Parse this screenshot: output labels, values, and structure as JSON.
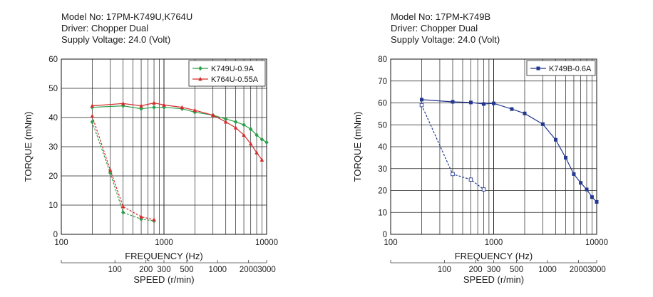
{
  "charts": [
    {
      "header": [
        "Model No: 17PM-K749U,K764U",
        "Driver: Chopper Dual",
        "Supply Voltage: 24.0 (Volt)"
      ],
      "chart_data": {
        "type": "line",
        "xscale": "log",
        "xlim": [
          100,
          10000
        ],
        "ylim": [
          0,
          60
        ],
        "xlabel": "FREQUENCY (Hz)",
        "ylabel": "TORQUE (mNm)",
        "xticks": [
          100,
          1000,
          10000
        ],
        "xtick_labels": [
          "100",
          "1000",
          "10000"
        ],
        "yticks": [
          0,
          10,
          20,
          30,
          40,
          50,
          60
        ],
        "speed_axis": {
          "label": "SPEED (r/min)",
          "ticks": [
            {
              "freq": 333,
              "label": "100"
            },
            {
              "freq": 667,
              "label": "200"
            },
            {
              "freq": 1000,
              "label": "300"
            },
            {
              "freq": 1667,
              "label": "500"
            },
            {
              "freq": 3333,
              "label": "1000"
            },
            {
              "freq": 6667,
              "label": "2000"
            },
            {
              "freq": 10000,
              "label": "3000"
            }
          ]
        },
        "legend_position": "top-right",
        "series": [
          {
            "name": "K749U-0.9A",
            "color": "#2e9e4a",
            "marker": "diamond",
            "dash": false,
            "points": [
              [
                200,
                43.5
              ],
              [
                400,
                44
              ],
              [
                600,
                43
              ],
              [
                800,
                43.5
              ],
              [
                1000,
                43.5
              ],
              [
                1500,
                43
              ],
              [
                2000,
                41.8
              ],
              [
                3000,
                40.8
              ],
              [
                4000,
                39.5
              ],
              [
                5000,
                38.5
              ],
              [
                6000,
                37.5
              ],
              [
                7000,
                36
              ],
              [
                8000,
                34
              ],
              [
                9000,
                32.5
              ],
              [
                10000,
                31.5
              ]
            ]
          },
          {
            "name": "K764U-0.55A",
            "color": "#d42a2a",
            "marker": "triangle",
            "dash": false,
            "points": [
              [
                200,
                44
              ],
              [
                400,
                44.8
              ],
              [
                600,
                44
              ],
              [
                800,
                45
              ],
              [
                1000,
                44.3
              ],
              [
                1500,
                43.5
              ],
              [
                2000,
                42.5
              ],
              [
                3000,
                40.8
              ],
              [
                4000,
                38.5
              ],
              [
                5000,
                36.5
              ],
              [
                6000,
                34
              ],
              [
                7000,
                31
              ],
              [
                8000,
                28
              ],
              [
                9000,
                25.5
              ]
            ]
          },
          {
            "color": "#2e9e4a",
            "marker": "diamond",
            "dash": true,
            "points": [
              [
                200,
                38.5
              ],
              [
                300,
                21
              ],
              [
                400,
                7.5
              ],
              [
                600,
                5.2
              ],
              [
                800,
                4.6
              ]
            ]
          },
          {
            "color": "#d42a2a",
            "marker": "triangle",
            "dash": true,
            "points": [
              [
                200,
                40.5
              ],
              [
                300,
                22
              ],
              [
                400,
                9.5
              ],
              [
                600,
                6
              ],
              [
                800,
                5
              ]
            ]
          }
        ]
      }
    },
    {
      "header": [
        "Model No: 17PM-K749B",
        "Driver: Chopper Dual",
        "Supply Voltage: 24.0 (Volt)"
      ],
      "chart_data": {
        "type": "line",
        "xscale": "log",
        "xlim": [
          100,
          10000
        ],
        "ylim": [
          0,
          80
        ],
        "xlabel": "FREQUENCY (Hz)",
        "ylabel": "TORQUE (mNm)",
        "xticks": [
          100,
          1000,
          10000
        ],
        "xtick_labels": [
          "100",
          "1000",
          "10000"
        ],
        "yticks": [
          0,
          10,
          20,
          30,
          40,
          50,
          60,
          70,
          80
        ],
        "speed_axis": {
          "label": "SPEED (r/min)",
          "ticks": [
            {
              "freq": 333,
              "label": "100"
            },
            {
              "freq": 667,
              "label": "200"
            },
            {
              "freq": 1000,
              "label": "300"
            },
            {
              "freq": 1667,
              "label": "500"
            },
            {
              "freq": 3333,
              "label": "1000"
            },
            {
              "freq": 6667,
              "label": "2000"
            },
            {
              "freq": 10000,
              "label": "3000"
            }
          ]
        },
        "legend_position": "top-right",
        "series": [
          {
            "name": "K749B-0.6A",
            "color": "#23378f",
            "marker": "square",
            "dash": false,
            "points": [
              [
                200,
                61.5
              ],
              [
                400,
                60.5
              ],
              [
                600,
                60.2
              ],
              [
                800,
                59.5
              ],
              [
                1000,
                59.8
              ],
              [
                1500,
                57.2
              ],
              [
                2000,
                55.2
              ],
              [
                3000,
                50.3
              ],
              [
                4000,
                43.2
              ],
              [
                5000,
                35
              ],
              [
                6000,
                27.5
              ],
              [
                7000,
                23.5
              ],
              [
                8000,
                20.5
              ],
              [
                9000,
                17
              ],
              [
                10000,
                14.8
              ]
            ]
          },
          {
            "color": "#23378f",
            "marker": "square-open",
            "dash": true,
            "points": [
              [
                200,
                59
              ],
              [
                400,
                27.5
              ],
              [
                600,
                25
              ],
              [
                800,
                20.5
              ]
            ]
          }
        ]
      }
    }
  ]
}
